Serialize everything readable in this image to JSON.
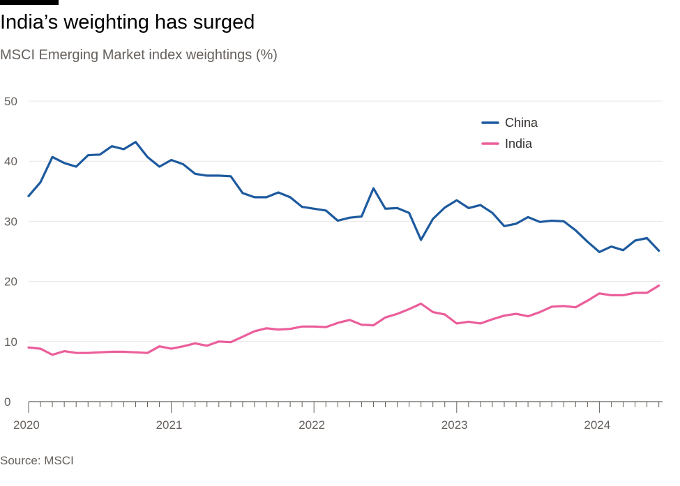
{
  "header": {
    "title": "India’s weighting has surged",
    "subtitle": "MSCI Emerging Market index weightings (%)"
  },
  "footer": {
    "source": "Source: MSCI"
  },
  "chart_data": {
    "type": "line",
    "title": "India’s weighting has surged",
    "subtitle": "MSCI Emerging Market index weightings (%)",
    "xlabel": "",
    "ylabel": "",
    "ylim": [
      0,
      50
    ],
    "xlim": [
      "2020-01",
      "2024-06"
    ],
    "y_ticks": [
      0,
      10,
      20,
      30,
      40,
      50
    ],
    "x_tick_labels": [
      "2020",
      "2021",
      "2022",
      "2023",
      "2024"
    ],
    "grid": "horizontal",
    "legend_position": "top-right",
    "x": [
      "2020-01",
      "2020-02",
      "2020-03",
      "2020-04",
      "2020-05",
      "2020-06",
      "2020-07",
      "2020-08",
      "2020-09",
      "2020-10",
      "2020-11",
      "2020-12",
      "2021-01",
      "2021-02",
      "2021-03",
      "2021-04",
      "2021-05",
      "2021-06",
      "2021-07",
      "2021-08",
      "2021-09",
      "2021-10",
      "2021-11",
      "2021-12",
      "2022-01",
      "2022-02",
      "2022-03",
      "2022-04",
      "2022-05",
      "2022-06",
      "2022-07",
      "2022-08",
      "2022-09",
      "2022-10",
      "2022-11",
      "2022-12",
      "2023-01",
      "2023-02",
      "2023-03",
      "2023-04",
      "2023-05",
      "2023-06",
      "2023-07",
      "2023-08",
      "2023-09",
      "2023-10",
      "2023-11",
      "2023-12",
      "2024-01",
      "2024-02",
      "2024-03",
      "2024-04",
      "2024-05",
      "2024-06"
    ],
    "series": [
      {
        "name": "China",
        "color": "#1d5a9e",
        "values": [
          34.2,
          36.5,
          40.7,
          39.7,
          39.1,
          41.0,
          41.1,
          42.5,
          42.0,
          43.2,
          40.7,
          39.1,
          40.2,
          39.5,
          37.9,
          37.6,
          37.6,
          37.5,
          34.7,
          34.0,
          34.0,
          34.8,
          34.0,
          32.4,
          32.1,
          31.8,
          30.1,
          30.6,
          30.8,
          35.5,
          32.1,
          32.2,
          31.4,
          26.9,
          30.4,
          32.3,
          33.5,
          32.2,
          32.7,
          31.4,
          29.2,
          29.6,
          30.7,
          29.9,
          30.1,
          30.0,
          28.5,
          26.6,
          24.9,
          25.8,
          25.2,
          26.8,
          27.2,
          25.1
        ]
      },
      {
        "name": "India",
        "color": "#eb5e9a",
        "values": [
          9.0,
          8.8,
          7.8,
          8.4,
          8.1,
          8.1,
          8.2,
          8.3,
          8.3,
          8.2,
          8.1,
          9.2,
          8.8,
          9.2,
          9.7,
          9.3,
          10.0,
          9.9,
          10.8,
          11.7,
          12.2,
          12.0,
          12.1,
          12.5,
          12.5,
          12.4,
          13.1,
          13.6,
          12.8,
          12.7,
          14.0,
          14.6,
          15.4,
          16.3,
          14.9,
          14.5,
          13.0,
          13.3,
          13.0,
          13.7,
          14.3,
          14.6,
          14.2,
          14.9,
          15.8,
          15.9,
          15.7,
          16.8,
          18.0,
          17.7,
          17.7,
          18.1,
          18.1,
          19.3
        ]
      }
    ]
  }
}
